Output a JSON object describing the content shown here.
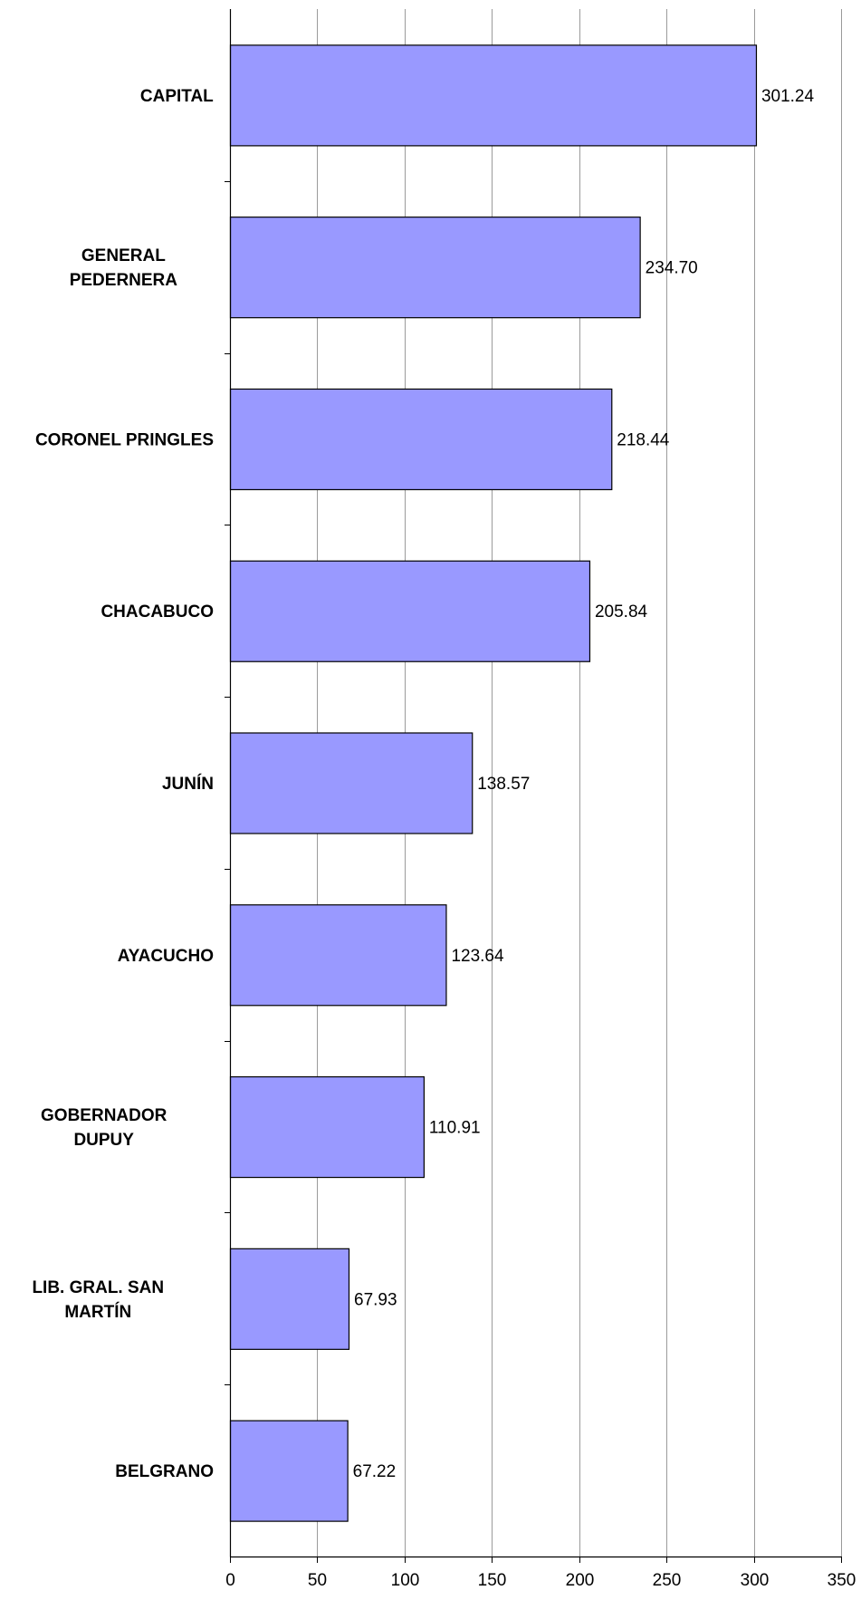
{
  "chart_data": {
    "type": "bar",
    "orientation": "horizontal",
    "categories": [
      [
        "CAPITAL"
      ],
      [
        "GENERAL",
        "PEDERNERA"
      ],
      [
        "CORONEL PRINGLES"
      ],
      [
        "CHACABUCO"
      ],
      [
        "JUNÍN"
      ],
      [
        "AYACUCHO"
      ],
      [
        "GOBERNADOR",
        "DUPUY"
      ],
      [
        "LIB. GRAL. SAN",
        "MARTÍN"
      ],
      [
        "BELGRANO"
      ]
    ],
    "values": [
      301.24,
      234.7,
      218.44,
      205.84,
      138.57,
      123.64,
      110.91,
      67.93,
      67.22
    ],
    "value_labels": [
      "301.24",
      "234.70",
      "218.44",
      "205.84",
      "138.57",
      "123.64",
      "110.91",
      "67.93",
      "67.22"
    ],
    "xlim": [
      0,
      350
    ],
    "xticks": [
      0,
      50,
      100,
      150,
      200,
      250,
      300,
      350
    ],
    "xtick_labels": [
      "0",
      "50",
      "100",
      "150",
      "200",
      "250",
      "300",
      "350"
    ],
    "title": "",
    "xlabel": "",
    "ylabel": "",
    "grid": "vertical",
    "legend": "none",
    "colors": {
      "bar_fill": "#9999ff",
      "bar_stroke": "#000000",
      "grid": "#9a9a9a",
      "axis": "#000000"
    }
  }
}
